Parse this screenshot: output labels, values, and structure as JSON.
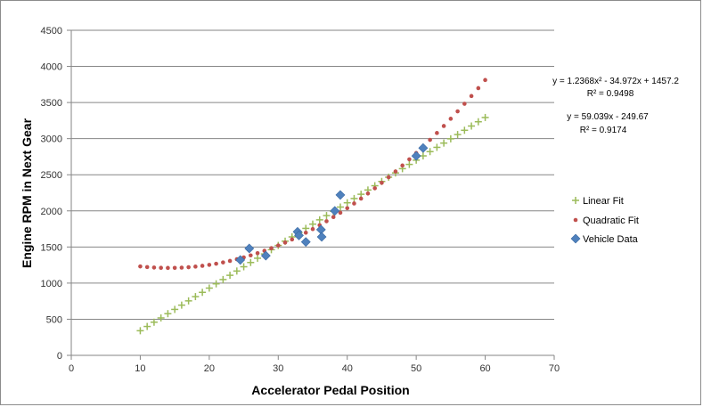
{
  "chart_data": {
    "type": "scatter",
    "xlabel": "Accelerator Pedal Position",
    "ylabel": "Engine RPM in Next Gear",
    "xlim": [
      0,
      70
    ],
    "ylim": [
      0,
      4500
    ],
    "xticks": [
      "0",
      "10",
      "20",
      "30",
      "40",
      "50",
      "60",
      "70"
    ],
    "yticks": [
      "0",
      "500",
      "1000",
      "1500",
      "2000",
      "2500",
      "3000",
      "3500",
      "4000",
      "4500"
    ],
    "grid": "horizontal",
    "legend_position": "right",
    "series": [
      {
        "name": "Linear Fit",
        "marker": "plus",
        "color": "#9bbb59",
        "equation": "y = 59.039x - 249.67",
        "r2": "R² = 0.9174",
        "slope": 59.039,
        "intercept": -249.67,
        "x_start": 10,
        "x_end": 60,
        "x_step": 1
      },
      {
        "name": "Quadratic Fit",
        "marker": "dot",
        "color": "#c0504d",
        "equation": "y = 1.2368x² - 34.972x + 1457.2",
        "r2": "R² = 0.9498",
        "a": 1.2368,
        "b": -34.972,
        "c": 1457.2,
        "x_start": 10,
        "x_end": 60,
        "x_step": 1
      },
      {
        "name": "Vehicle Data",
        "marker": "diamond",
        "color": "#4f81bd",
        "points": [
          [
            24.5,
            1320
          ],
          [
            25.8,
            1480
          ],
          [
            28.2,
            1380
          ],
          [
            32.8,
            1710
          ],
          [
            33.0,
            1660
          ],
          [
            34.0,
            1570
          ],
          [
            36.2,
            1740
          ],
          [
            36.3,
            1640
          ],
          [
            38.2,
            2000
          ],
          [
            39.0,
            2220
          ],
          [
            50.0,
            2760
          ],
          [
            51.0,
            2870
          ]
        ]
      }
    ]
  }
}
